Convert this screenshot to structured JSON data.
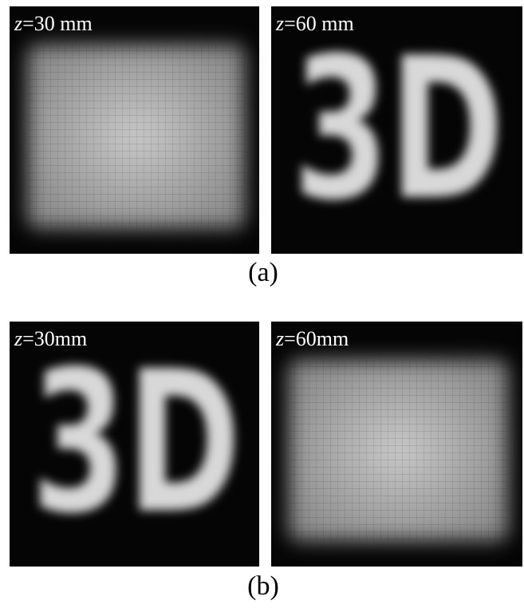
{
  "figure": {
    "rows": [
      {
        "caption": "(a)",
        "images": [
          {
            "label": {
              "var": "z",
              "rest": "=30 mm"
            }
          },
          {
            "label": {
              "var": "z",
              "rest": "=60 mm"
            },
            "object_text": "3D"
          }
        ]
      },
      {
        "caption": "(b)",
        "images": [
          {
            "label": {
              "var": "z",
              "rest": "=30mm"
            },
            "object_text": "3D"
          },
          {
            "label": {
              "var": "z",
              "rest": "=60mm"
            }
          }
        ]
      }
    ]
  }
}
